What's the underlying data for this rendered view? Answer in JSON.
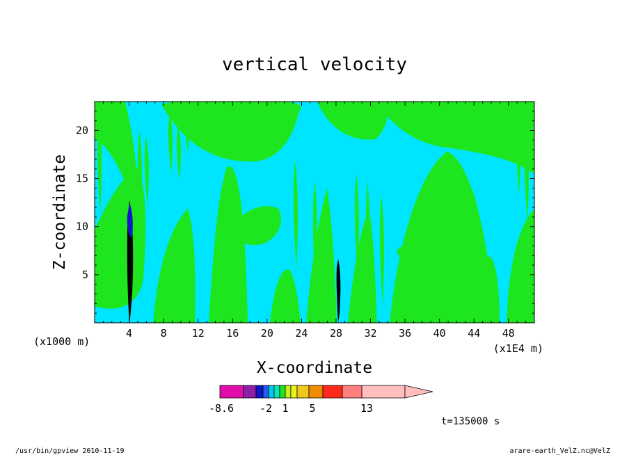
{
  "chart_data": {
    "type": "heatmap",
    "title": "vertical velocity",
    "xlabel": "X-coordinate",
    "ylabel": "Z-coordinate",
    "x_unit_note": "(x1E4 m)",
    "y_unit_note": "(x1000 m)",
    "x_ticks": [
      4,
      8,
      12,
      16,
      20,
      24,
      28,
      32,
      36,
      40,
      44,
      48
    ],
    "y_ticks": [
      5,
      10,
      15,
      20
    ],
    "xlim": [
      0,
      51
    ],
    "ylim": [
      0,
      23
    ],
    "grid": false,
    "colorbar": {
      "tick_labels": [
        "-8.6",
        "-2",
        "1",
        "5",
        "13"
      ],
      "colors": [
        "#e10daa",
        "#8e1fa9",
        "#1515c8",
        "#1f5cf0",
        "#00c8e8",
        "#00e6c0",
        "#1ee61e",
        "#c8f01e",
        "#f0f01e",
        "#f0c81e",
        "#f08c00",
        "#ff2a1e",
        "#ff7f7f",
        "#ffbfbf"
      ]
    },
    "background_color": "#00e5ff",
    "band_color": "#1ee61e",
    "core_color": "#000000",
    "time_label": "t=135000 s"
  },
  "footer": {
    "left": "/usr/bin/gpview   2010-11-19",
    "right": "arare-earth_VelZ.nc@VelZ"
  }
}
